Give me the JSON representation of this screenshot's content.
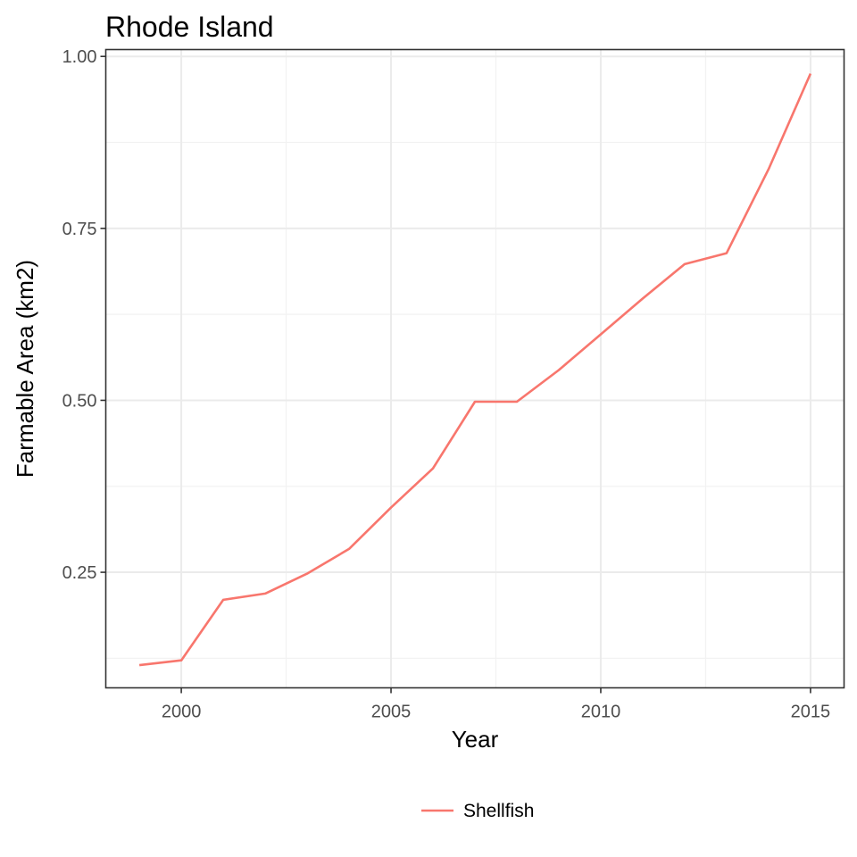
{
  "chart_data": {
    "type": "line",
    "title": "Rhode Island",
    "xlabel": "Year",
    "ylabel": "Farmable Area (km2)",
    "xlim": [
      1998.2,
      2015.8
    ],
    "ylim": [
      0.082,
      1.01
    ],
    "x_ticks": [
      2000,
      2005,
      2010,
      2015
    ],
    "x_tick_labels": [
      "2000",
      "2005",
      "2010",
      "2015"
    ],
    "y_ticks": [
      0.25,
      0.5,
      0.75,
      1.0
    ],
    "y_tick_labels": [
      "0.25",
      "0.50",
      "0.75",
      "1.00"
    ],
    "grid": true,
    "legend_position": "bottom",
    "series": [
      {
        "name": "Shellfish",
        "color": "#f8766d",
        "x": [
          1999,
          2000,
          2001,
          2002,
          2003,
          2004,
          2005,
          2006,
          2007,
          2008,
          2009,
          2010,
          2011,
          2012,
          2013,
          2014,
          2015
        ],
        "values": [
          0.115,
          0.122,
          0.21,
          0.219,
          0.248,
          0.284,
          0.344,
          0.401,
          0.498,
          0.498,
          0.544,
          0.596,
          0.648,
          0.698,
          0.714,
          0.836,
          0.975
        ]
      }
    ]
  }
}
